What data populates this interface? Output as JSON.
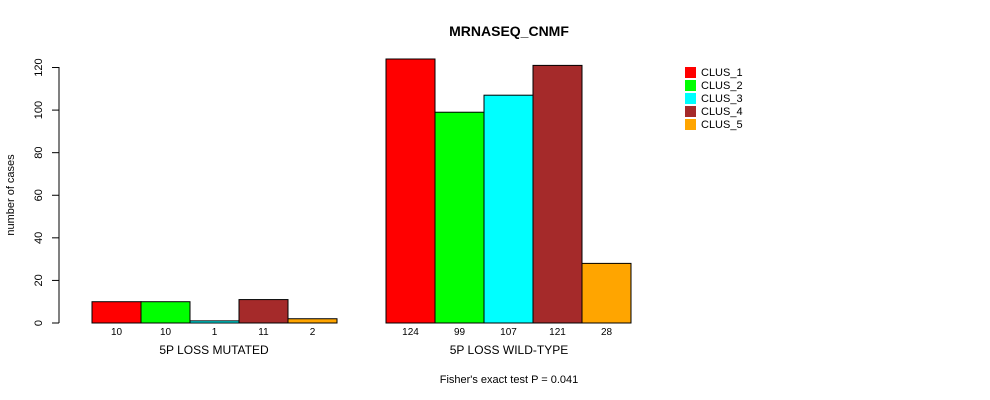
{
  "chart_data": {
    "type": "bar",
    "title": "MRNASEQ_CNMF",
    "ylabel": "number of cases",
    "xlabel": "",
    "ylim": [
      0,
      124
    ],
    "yticks": [
      0,
      20,
      40,
      60,
      80,
      100,
      120
    ],
    "footer": "Fisher's exact test P = 0.041",
    "legend_position": "top-right",
    "groups": [
      {
        "label": "5P LOSS MUTATED",
        "values": [
          10,
          10,
          1,
          11,
          2
        ]
      },
      {
        "label": "5P LOSS WILD-TYPE",
        "values": [
          124,
          99,
          107,
          121,
          28
        ]
      }
    ],
    "series": [
      {
        "name": "CLUS_1",
        "color": "#ff0000"
      },
      {
        "name": "CLUS_2",
        "color": "#00ff00"
      },
      {
        "name": "CLUS_3",
        "color": "#00ffff"
      },
      {
        "name": "CLUS_4",
        "color": "#a52a2a"
      },
      {
        "name": "CLUS_5",
        "color": "#ffa500"
      }
    ]
  }
}
